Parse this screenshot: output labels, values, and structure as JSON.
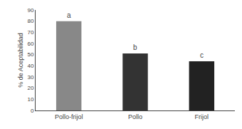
{
  "chart_data": {
    "type": "bar",
    "categories": [
      "Pollo-frijol",
      "Pollo",
      "Frijol"
    ],
    "values": [
      80,
      51,
      44
    ],
    "colors": [
      "#888888",
      "#333333",
      "#222222"
    ],
    "annotations": [
      "a",
      "b",
      "c"
    ],
    "ylabel": "% de Aceptabilidad",
    "ylim": [
      0,
      90
    ],
    "yticks": [
      0,
      10,
      20,
      30,
      40,
      50,
      60,
      70,
      80,
      90
    ],
    "grid": false
  }
}
